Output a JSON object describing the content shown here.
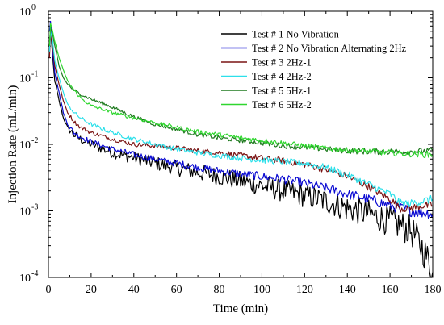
{
  "chart_data": {
    "type": "line",
    "title": "",
    "xlabel": "Time (min)",
    "ylabel": "Injection Rate (mL/min)",
    "xlim": [
      0,
      180
    ],
    "ylim": [
      0.0001,
      1
    ],
    "yscale": "log",
    "grid": false,
    "legend_position": "top-right",
    "x_ticks": [
      0,
      20,
      40,
      60,
      80,
      100,
      120,
      140,
      160,
      180
    ],
    "x_tick_labels": [
      "0",
      "20",
      "40",
      "60",
      "80",
      "100",
      "120",
      "140",
      "160",
      "180"
    ],
    "y_ticks": [
      {
        "value": 1,
        "base": "10",
        "exp": "0"
      },
      {
        "value": 0.1,
        "base": "10",
        "exp": "-1"
      },
      {
        "value": 0.01,
        "base": "10",
        "exp": "-2"
      },
      {
        "value": 0.001,
        "base": "10",
        "exp": "-3"
      },
      {
        "value": 0.0001,
        "base": "10",
        "exp": "-4"
      }
    ],
    "series": [
      {
        "name": "Test # 1 No Vibration",
        "color": "#000000",
        "noise": 0.05,
        "x": [
          0.5,
          1,
          2,
          3,
          5,
          7,
          9,
          12,
          15,
          20,
          30,
          40,
          50,
          60,
          70,
          80,
          90,
          100,
          110,
          120,
          130,
          140,
          150,
          160,
          165,
          170,
          172,
          175,
          178,
          180
        ],
        "y": [
          0.3,
          0.5,
          0.2,
          0.09,
          0.045,
          0.025,
          0.018,
          0.014,
          0.012,
          0.01,
          0.0075,
          0.0063,
          0.0052,
          0.0044,
          0.0038,
          0.0033,
          0.0028,
          0.0024,
          0.002,
          0.0017,
          0.0014,
          0.0011,
          0.0009,
          0.0007,
          0.0006,
          0.0005,
          0.0004,
          0.00028,
          0.00018,
          0.00012
        ]
      },
      {
        "name": "Test # 2 No Vibration Alternating 2Hz",
        "color": "#0a0ad2",
        "noise": 0.035,
        "x": [
          0.5,
          1,
          2,
          3,
          5,
          7,
          9,
          12,
          15,
          20,
          30,
          40,
          50,
          60,
          70,
          80,
          90,
          100,
          110,
          120,
          130,
          140,
          150,
          160,
          170,
          180
        ],
        "y": [
          0.5,
          0.7,
          0.25,
          0.12,
          0.06,
          0.03,
          0.02,
          0.015,
          0.013,
          0.011,
          0.0085,
          0.007,
          0.006,
          0.0052,
          0.0045,
          0.004,
          0.0036,
          0.0033,
          0.003,
          0.0026,
          0.0022,
          0.0018,
          0.0015,
          0.0012,
          0.001,
          0.0009
        ]
      },
      {
        "name": "Test # 3 2Hz-1",
        "color": "#7a1414",
        "noise": 0.025,
        "x": [
          0.5,
          1,
          2,
          3,
          5,
          7,
          9,
          12,
          15,
          20,
          30,
          40,
          50,
          60,
          70,
          80,
          90,
          100,
          110,
          120,
          130,
          140,
          150,
          160,
          165,
          170,
          175,
          180
        ],
        "y": [
          0.2,
          0.45,
          0.3,
          0.15,
          0.08,
          0.045,
          0.03,
          0.022,
          0.018,
          0.015,
          0.012,
          0.01,
          0.0095,
          0.0088,
          0.008,
          0.0075,
          0.0068,
          0.0062,
          0.0057,
          0.005,
          0.0042,
          0.0033,
          0.0023,
          0.0015,
          0.0011,
          0.0011,
          0.0012,
          0.0012
        ]
      },
      {
        "name": "Test # 4 2Hz-2",
        "color": "#2de0ea",
        "noise": 0.025,
        "x": [
          0.5,
          1,
          2,
          3,
          5,
          7,
          9,
          12,
          15,
          20,
          30,
          40,
          50,
          60,
          70,
          80,
          90,
          100,
          110,
          120,
          130,
          140,
          150,
          160,
          165,
          170,
          175,
          180
        ],
        "y": [
          0.25,
          0.5,
          0.35,
          0.18,
          0.1,
          0.06,
          0.04,
          0.03,
          0.025,
          0.02,
          0.015,
          0.012,
          0.01,
          0.0085,
          0.0075,
          0.0068,
          0.0062,
          0.0058,
          0.0055,
          0.0052,
          0.0045,
          0.0035,
          0.0025,
          0.0018,
          0.0013,
          0.0013,
          0.0014,
          0.0015
        ]
      },
      {
        "name": "Test # 5 5Hz-1",
        "color": "#1f7a1f",
        "noise": 0.02,
        "x": [
          0.5,
          1,
          2,
          3,
          5,
          7,
          9,
          12,
          15,
          20,
          30,
          40,
          50,
          60,
          70,
          80,
          90,
          100,
          110,
          120,
          130,
          140,
          150,
          160,
          170,
          180
        ],
        "y": [
          0.35,
          0.55,
          0.45,
          0.3,
          0.15,
          0.1,
          0.08,
          0.065,
          0.057,
          0.048,
          0.036,
          0.026,
          0.02,
          0.017,
          0.014,
          0.0125,
          0.0115,
          0.0105,
          0.0095,
          0.009,
          0.0085,
          0.008,
          0.0078,
          0.0078,
          0.0078,
          0.008
        ]
      },
      {
        "name": "Test # 6 5Hz-2",
        "color": "#2fd62f",
        "noise": 0.02,
        "x": [
          0.5,
          1,
          2,
          3,
          5,
          7,
          9,
          12,
          15,
          20,
          30,
          40,
          50,
          60,
          70,
          80,
          90,
          100,
          110,
          120,
          130,
          140,
          150,
          160,
          170,
          180
        ],
        "y": [
          0.3,
          0.65,
          0.5,
          0.35,
          0.2,
          0.13,
          0.09,
          0.065,
          0.05,
          0.038,
          0.03,
          0.025,
          0.021,
          0.018,
          0.0155,
          0.014,
          0.0125,
          0.0115,
          0.0105,
          0.0095,
          0.0087,
          0.0082,
          0.0078,
          0.0075,
          0.0072,
          0.007
        ]
      }
    ]
  }
}
